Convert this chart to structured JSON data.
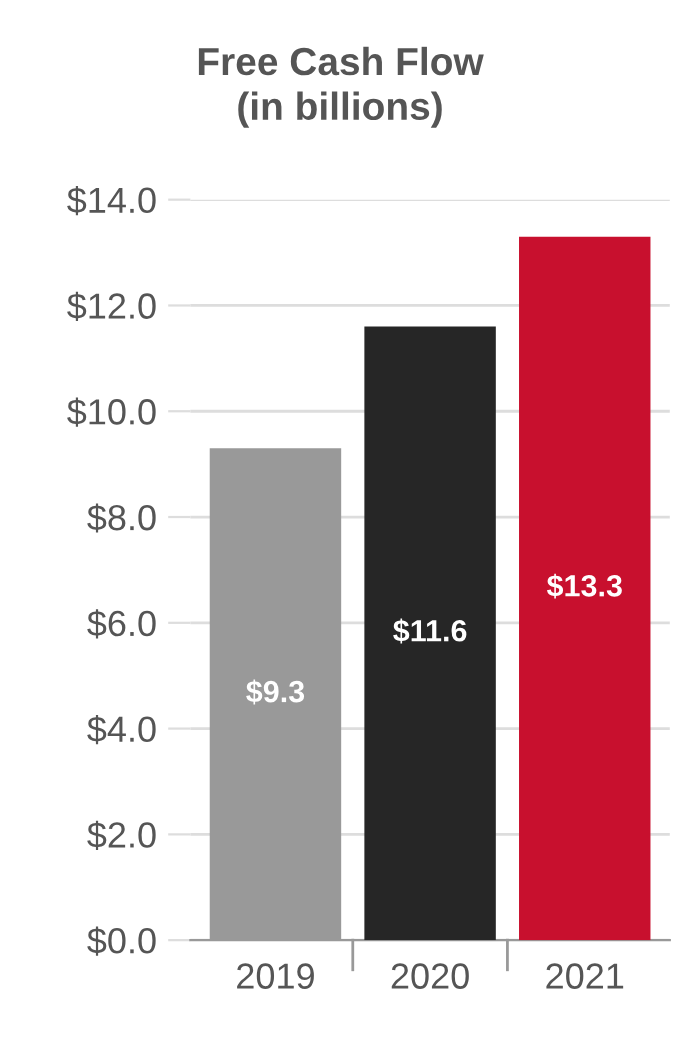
{
  "chart_data": {
    "type": "bar",
    "title": "Free Cash Flow\n(in billions)",
    "categories": [
      "2019",
      "2020",
      "2021"
    ],
    "values": [
      9.3,
      11.6,
      13.3
    ],
    "colors": [
      "#999999",
      "#262626",
      "#c8102e"
    ],
    "value_labels": [
      "$9.3",
      "$11.6",
      "$13.3"
    ],
    "ylim": [
      0,
      14
    ],
    "yticks": [
      {
        "value": 0,
        "label": "$0.0"
      },
      {
        "value": 2,
        "label": "$2.0"
      },
      {
        "value": 4,
        "label": "$4.0"
      },
      {
        "value": 6,
        "label": "$6.0"
      },
      {
        "value": 8,
        "label": "$8.0"
      },
      {
        "value": 10,
        "label": "$10.0"
      },
      {
        "value": 12,
        "label": "$12.0"
      },
      {
        "value": 14,
        "label": "$14.0"
      }
    ],
    "grid": "y"
  }
}
